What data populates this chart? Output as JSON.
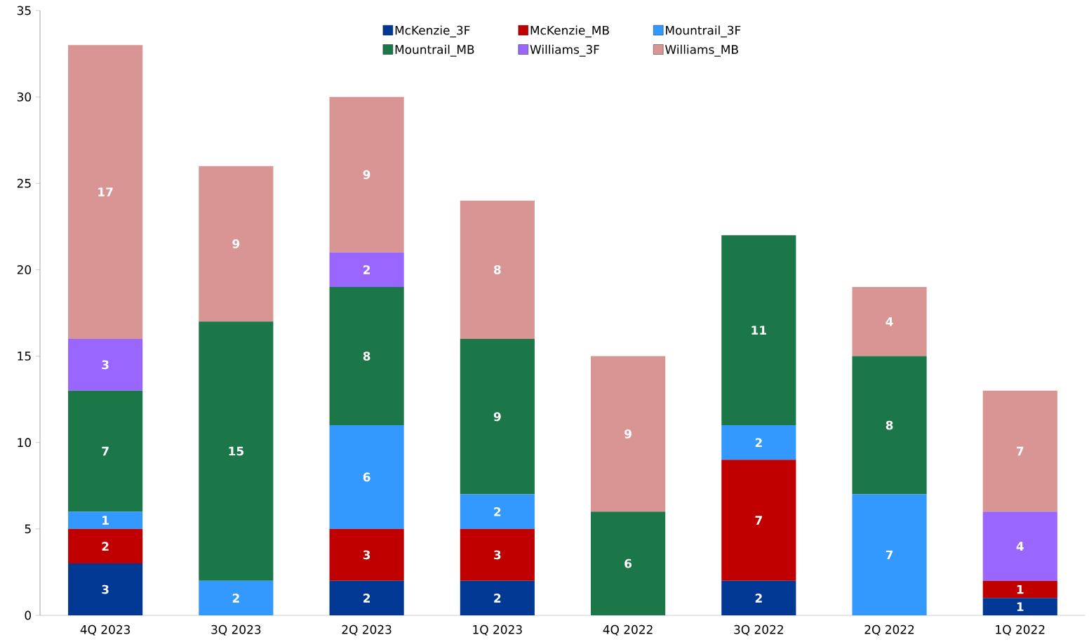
{
  "chart_data": {
    "type": "bar",
    "stacked": true,
    "data_labels": true,
    "legend": "top",
    "grid": false,
    "categories": [
      "4Q 2023",
      "3Q 2023",
      "2Q 2023",
      "1Q 2023",
      "4Q 2022",
      "3Q 2022",
      "2Q 2022",
      "1Q 2022"
    ],
    "ylim": [
      0,
      35
    ],
    "yticks": [
      0,
      5,
      10,
      15,
      20,
      25,
      30,
      35
    ],
    "series": [
      {
        "name": "McKenzie_3F",
        "color": "#003893",
        "values": [
          3,
          null,
          2,
          2,
          null,
          2,
          null,
          1
        ]
      },
      {
        "name": "McKenzie_MB",
        "color": "#c00000",
        "values": [
          2,
          null,
          3,
          3,
          null,
          7,
          null,
          1
        ]
      },
      {
        "name": "Mountrail_3F",
        "color": "#3399ff",
        "values": [
          1,
          2,
          6,
          2,
          null,
          2,
          7,
          null
        ]
      },
      {
        "name": "Mountrail_MB",
        "color": "#1b7648",
        "values": [
          7,
          15,
          8,
          9,
          6,
          11,
          8,
          null
        ]
      },
      {
        "name": "Williams_3F",
        "color": "#9966ff",
        "values": [
          3,
          null,
          2,
          null,
          null,
          null,
          null,
          4
        ]
      },
      {
        "name": "Williams_MB",
        "color": "#d99594",
        "values": [
          17,
          9,
          9,
          8,
          9,
          null,
          4,
          7
        ]
      }
    ]
  }
}
